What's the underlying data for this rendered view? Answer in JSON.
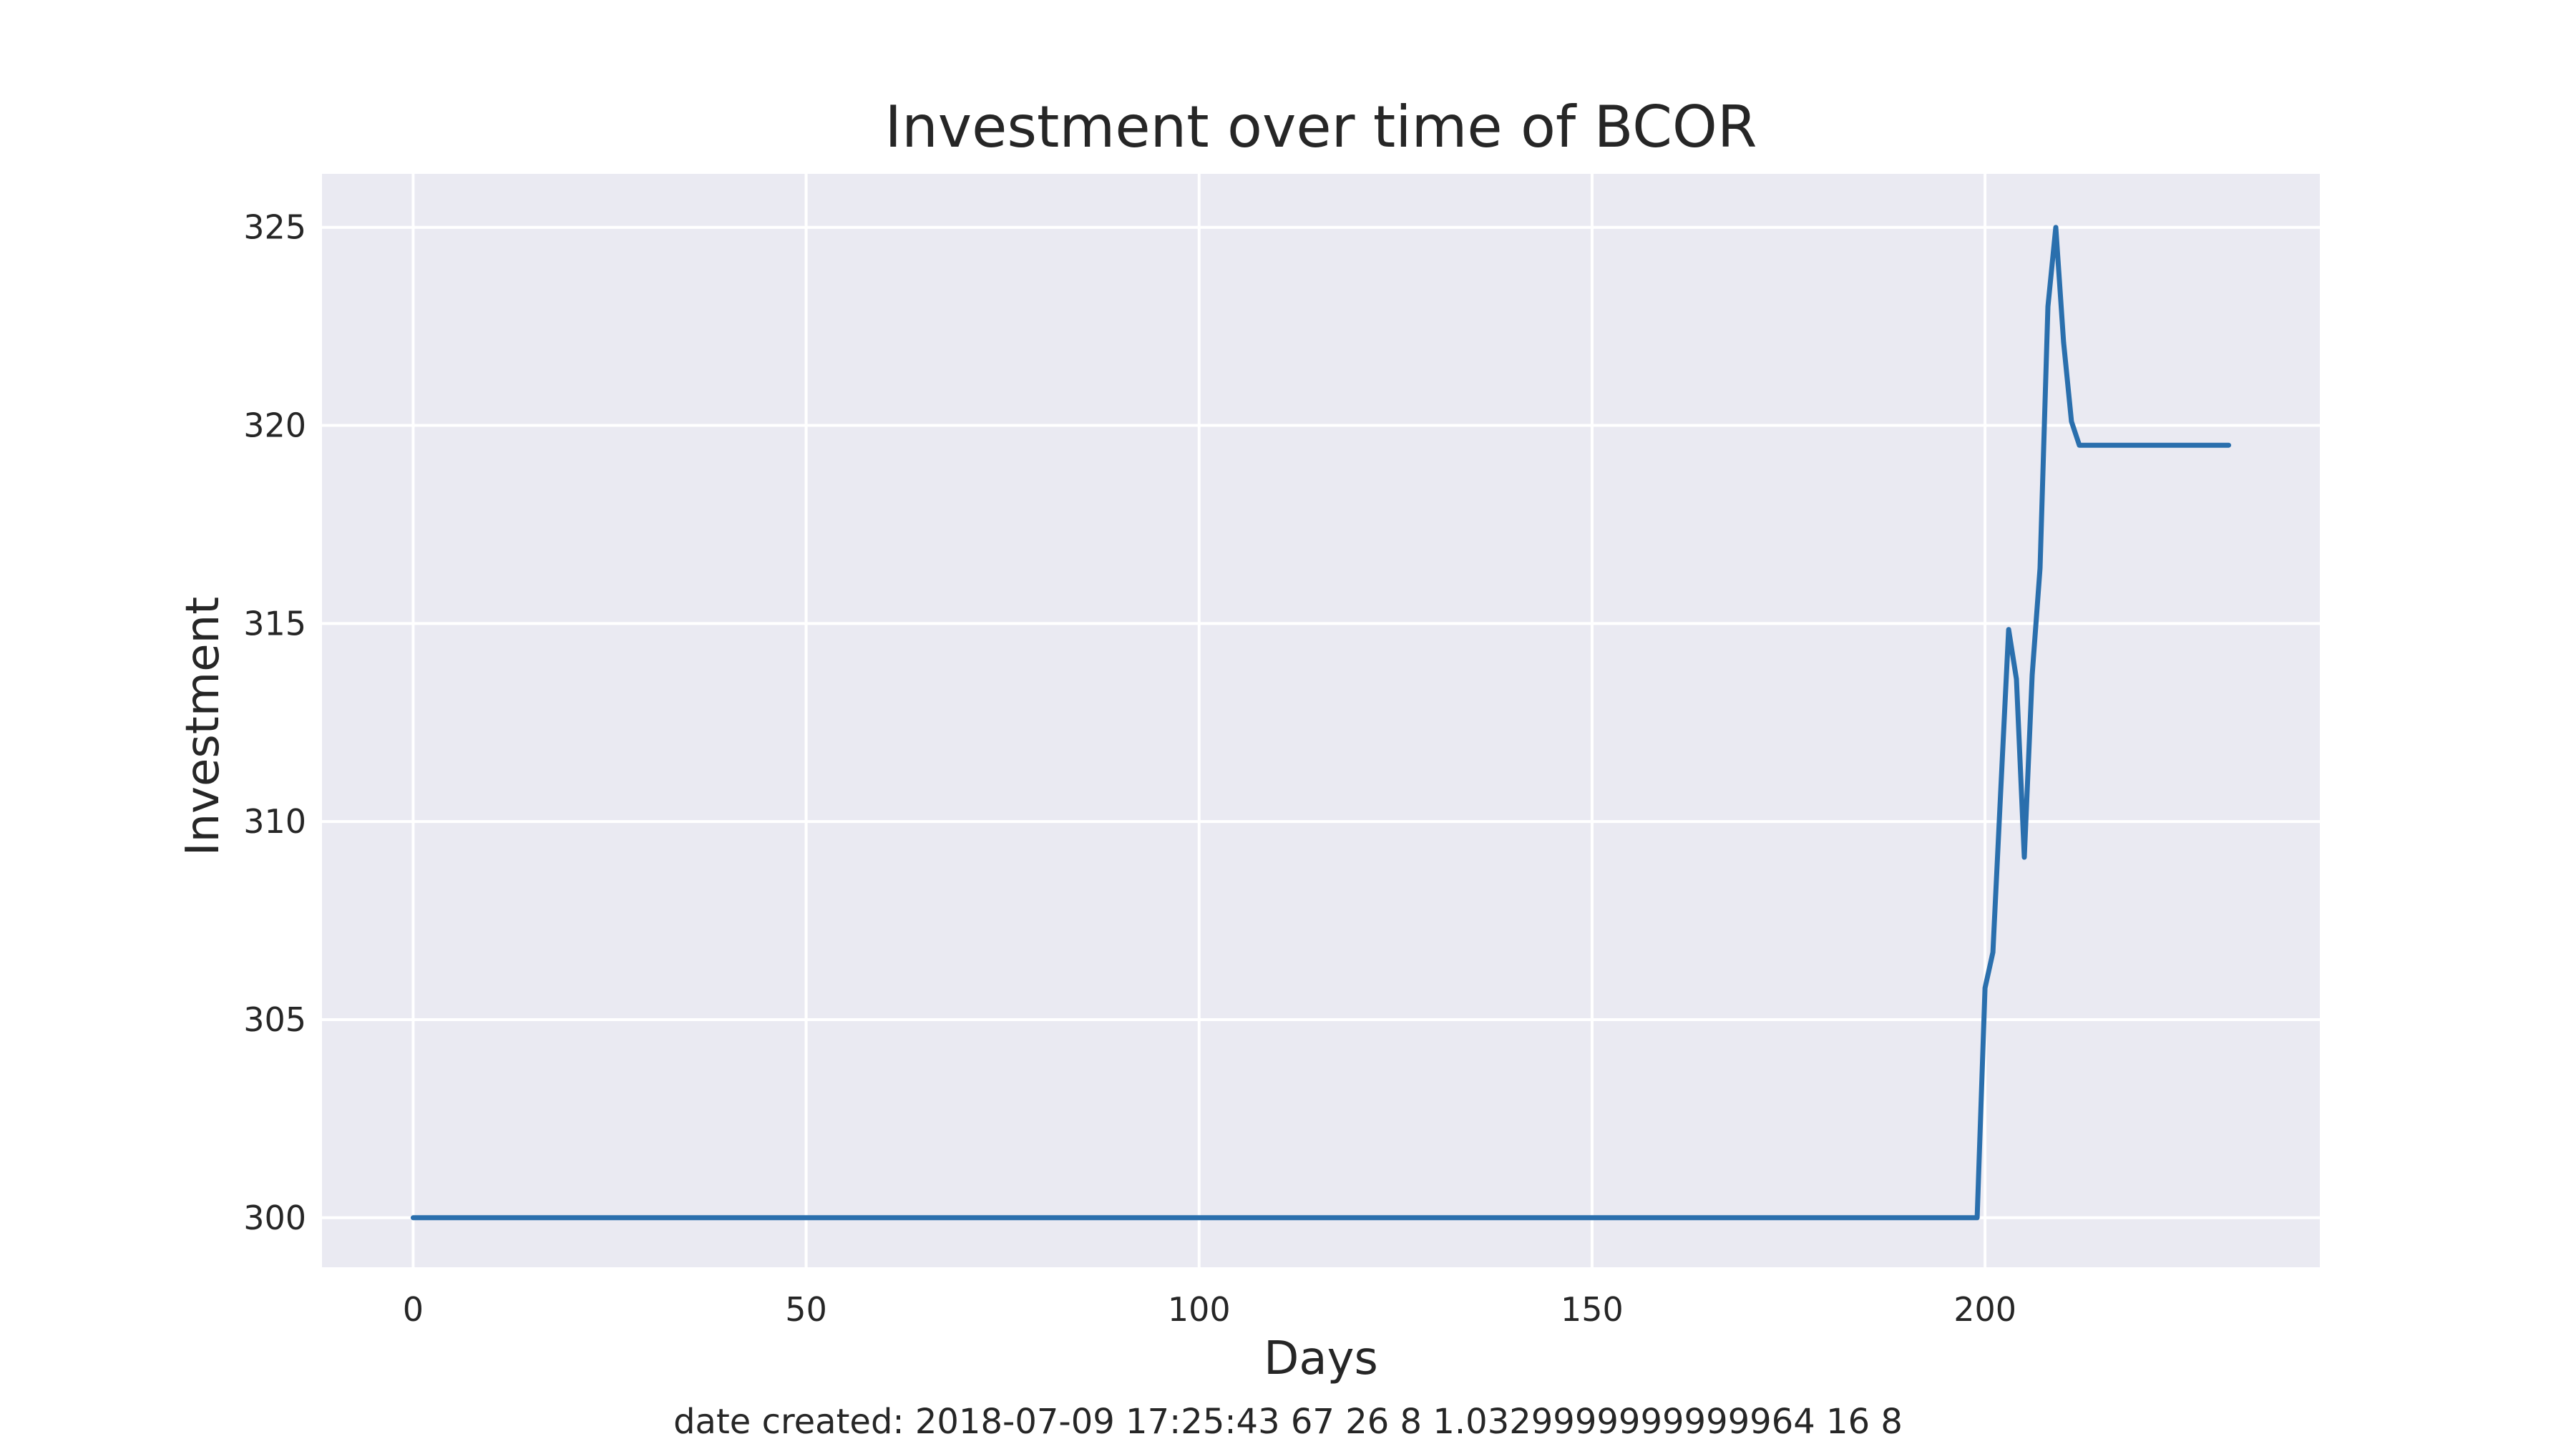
{
  "chart_data": {
    "type": "line",
    "title": "Investment over time of BCOR",
    "xlabel": "Days",
    "ylabel": "Investment",
    "xlim": [
      -11.6,
      242.6
    ],
    "ylim": [
      298.75,
      326.35
    ],
    "xticks": [
      0,
      50,
      100,
      150,
      200
    ],
    "yticks": [
      300,
      305,
      310,
      315,
      320,
      325
    ],
    "grid": true,
    "legend": "none",
    "series": [
      {
        "color": "#2a6fad",
        "x": [
          0,
          199,
          200,
          201,
          202,
          203,
          204,
          205,
          206,
          207,
          208,
          209,
          210,
          211,
          212,
          231
        ],
        "y": [
          300,
          300,
          305.8,
          306.7,
          310.8,
          314.85,
          313.6,
          309.1,
          313.7,
          316.4,
          323.0,
          325.0,
          322.1,
          320.1,
          319.5,
          319.5
        ]
      }
    ]
  },
  "footer": {
    "note": "date created: 2018-07-09 17:25:43 67 26 8 1.0329999999999964 16 8"
  },
  "colors": {
    "plot_background": "#eaeaf2",
    "grid": "#ffffff",
    "text": "#262626"
  }
}
